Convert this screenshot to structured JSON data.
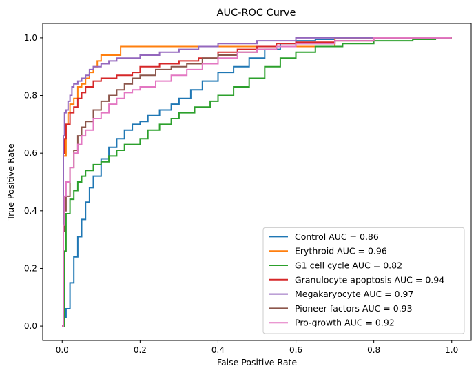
{
  "chart_data": {
    "type": "line",
    "title": "AUC-ROC Curve",
    "xlabel": "False Positive Rate",
    "ylabel": "True Positive Rate",
    "xlim": [
      -0.05,
      1.05
    ],
    "ylim": [
      -0.05,
      1.05
    ],
    "xticks": [
      "0.0",
      "0.2",
      "0.4",
      "0.6",
      "0.8",
      "1.0"
    ],
    "yticks": [
      "0.0",
      "0.2",
      "0.4",
      "0.6",
      "0.8",
      "1.0"
    ],
    "grid": false,
    "legend_position": "lower-right",
    "series": [
      {
        "name": "Control AUC = 0.86",
        "color": "#1f77b4",
        "x": [
          0,
          0.003,
          0.01,
          0.02,
          0.03,
          0.04,
          0.05,
          0.06,
          0.07,
          0.08,
          0.1,
          0.12,
          0.14,
          0.16,
          0.18,
          0.2,
          0.22,
          0.25,
          0.28,
          0.3,
          0.33,
          0.36,
          0.4,
          0.44,
          0.48,
          0.52,
          0.56,
          0.6,
          0.65,
          0.7,
          0.8,
          0.9,
          1.0
        ],
        "y": [
          0,
          0.03,
          0.06,
          0.15,
          0.24,
          0.31,
          0.37,
          0.43,
          0.48,
          0.52,
          0.58,
          0.62,
          0.65,
          0.68,
          0.7,
          0.71,
          0.73,
          0.75,
          0.77,
          0.79,
          0.82,
          0.85,
          0.88,
          0.9,
          0.93,
          0.96,
          0.98,
          0.99,
          0.995,
          1.0,
          1.0,
          1.0,
          1.0
        ]
      },
      {
        "name": "Erythroid AUC = 0.96",
        "color": "#ff7f0e",
        "x": [
          0,
          0.003,
          0.01,
          0.015,
          0.02,
          0.03,
          0.04,
          0.05,
          0.06,
          0.07,
          0.08,
          0.09,
          0.1,
          0.14,
          0.15,
          0.6,
          0.7,
          0.8,
          1.0
        ],
        "y": [
          0,
          0.59,
          0.7,
          0.74,
          0.77,
          0.79,
          0.83,
          0.84,
          0.86,
          0.88,
          0.9,
          0.92,
          0.94,
          0.94,
          0.97,
          0.97,
          1.0,
          1.0,
          1.0
        ]
      },
      {
        "name": "G1 cell cycle AUC = 0.82",
        "color": "#2ca02c",
        "x": [
          0,
          0.005,
          0.01,
          0.02,
          0.03,
          0.04,
          0.05,
          0.06,
          0.08,
          0.1,
          0.12,
          0.14,
          0.16,
          0.2,
          0.22,
          0.25,
          0.28,
          0.3,
          0.34,
          0.38,
          0.4,
          0.44,
          0.48,
          0.52,
          0.56,
          0.6,
          0.65,
          0.72,
          0.8,
          0.9,
          0.96
        ],
        "y": [
          0,
          0.26,
          0.39,
          0.44,
          0.47,
          0.5,
          0.52,
          0.54,
          0.56,
          0.57,
          0.59,
          0.61,
          0.63,
          0.65,
          0.68,
          0.7,
          0.72,
          0.74,
          0.76,
          0.78,
          0.8,
          0.83,
          0.86,
          0.9,
          0.93,
          0.95,
          0.97,
          0.98,
          0.99,
          0.995,
          0.995
        ]
      },
      {
        "name": "Granulocyte apoptosis AUC = 0.94",
        "color": "#d62728",
        "x": [
          0,
          0.003,
          0.006,
          0.01,
          0.02,
          0.03,
          0.04,
          0.05,
          0.06,
          0.08,
          0.1,
          0.14,
          0.18,
          0.2,
          0.25,
          0.3,
          0.35,
          0.4,
          0.45,
          0.5,
          0.55,
          0.6,
          0.7,
          0.8,
          1.0
        ],
        "y": [
          0,
          0.6,
          0.65,
          0.7,
          0.74,
          0.76,
          0.79,
          0.81,
          0.83,
          0.85,
          0.86,
          0.87,
          0.88,
          0.9,
          0.91,
          0.92,
          0.93,
          0.95,
          0.96,
          0.97,
          0.98,
          0.985,
          0.99,
          1.0,
          1.0
        ]
      },
      {
        "name": "Megakaryocyte AUC = 0.97",
        "color": "#9467bd",
        "x": [
          0,
          0.003,
          0.006,
          0.01,
          0.015,
          0.02,
          0.025,
          0.03,
          0.04,
          0.05,
          0.06,
          0.07,
          0.08,
          0.1,
          0.12,
          0.14,
          0.16,
          0.2,
          0.25,
          0.3,
          0.35,
          0.4,
          0.5,
          0.6,
          0.7,
          1.0
        ],
        "y": [
          0,
          0.66,
          0.74,
          0.75,
          0.78,
          0.8,
          0.83,
          0.84,
          0.85,
          0.86,
          0.87,
          0.89,
          0.9,
          0.91,
          0.92,
          0.93,
          0.93,
          0.94,
          0.95,
          0.96,
          0.97,
          0.98,
          0.99,
          1.0,
          1.0,
          1.0
        ]
      },
      {
        "name": "Pioneer factors AUC = 0.93",
        "color": "#8c564b",
        "x": [
          0,
          0.003,
          0.006,
          0.01,
          0.02,
          0.03,
          0.04,
          0.05,
          0.06,
          0.08,
          0.1,
          0.12,
          0.14,
          0.16,
          0.18,
          0.2,
          0.24,
          0.28,
          0.32,
          0.36,
          0.4,
          0.45,
          0.5,
          0.55,
          0.6,
          0.7,
          0.8,
          1.0
        ],
        "y": [
          0,
          0.33,
          0.4,
          0.45,
          0.55,
          0.61,
          0.66,
          0.69,
          0.71,
          0.75,
          0.78,
          0.8,
          0.82,
          0.84,
          0.86,
          0.87,
          0.89,
          0.9,
          0.91,
          0.93,
          0.94,
          0.95,
          0.96,
          0.97,
          0.98,
          0.99,
          1.0,
          1.0
        ]
      },
      {
        "name": "Pro-growth AUC = 0.92",
        "color": "#e377c2",
        "x": [
          0,
          0.003,
          0.006,
          0.01,
          0.02,
          0.03,
          0.04,
          0.05,
          0.06,
          0.08,
          0.1,
          0.12,
          0.14,
          0.16,
          0.18,
          0.2,
          0.24,
          0.28,
          0.32,
          0.36,
          0.4,
          0.45,
          0.5,
          0.55,
          0.6,
          0.7,
          0.8,
          1.0
        ],
        "y": [
          0,
          0.35,
          0.45,
          0.5,
          0.55,
          0.6,
          0.63,
          0.66,
          0.68,
          0.72,
          0.74,
          0.77,
          0.79,
          0.81,
          0.82,
          0.83,
          0.85,
          0.87,
          0.89,
          0.91,
          0.93,
          0.95,
          0.96,
          0.97,
          0.98,
          0.99,
          1.0,
          1.0
        ]
      }
    ]
  }
}
